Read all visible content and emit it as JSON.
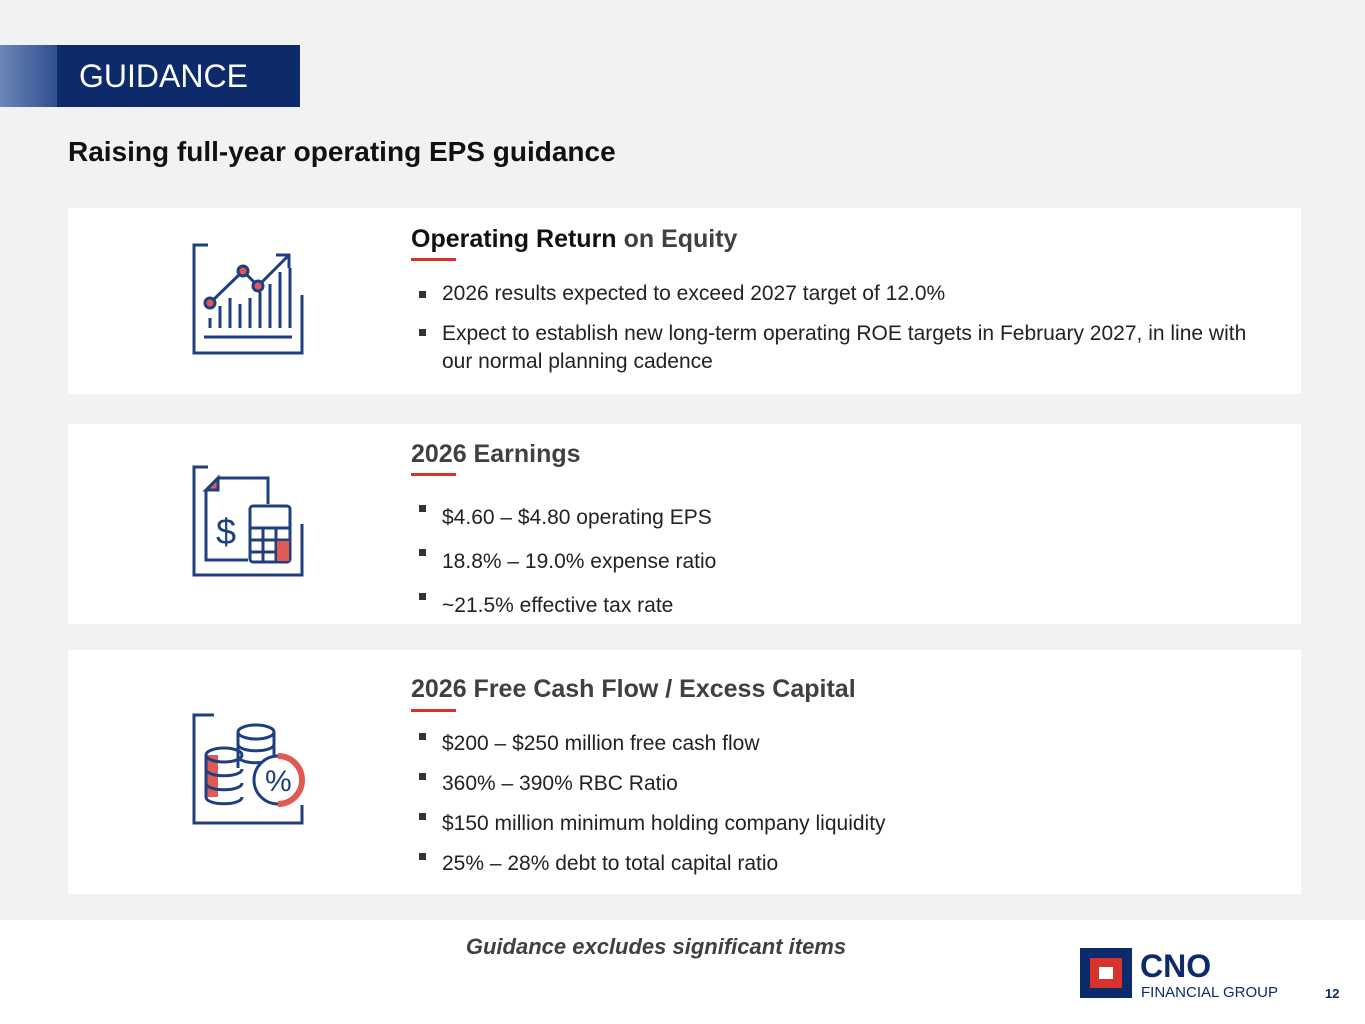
{
  "header": {
    "tag": "GUIDANCE",
    "title": "Raising full-year operating EPS guidance"
  },
  "sections": [
    {
      "heading": [
        "Operating Return",
        "on Equity"
      ],
      "bullets": [
        "2026 results expected to exceed 2027 target of 12.0%",
        "Expect to establish new long-term operating ROE targets in February 2027, in line with our normal planning cadence"
      ]
    },
    {
      "heading": [
        "2026 Earnings"
      ],
      "bullets": [
        "$4.60 – $4.80 operating EPS",
        "18.8% – 19.0% expense ratio",
        "~21.5% effective tax rate"
      ]
    },
    {
      "heading": [
        "2026 Free Cash Flow / Excess Capital"
      ],
      "bullets": [
        "$200 – $250 million free cash flow",
        "360% – 390% RBC Ratio",
        "$150 million minimum holding company liquidity",
        "25% – 28% debt to total capital ratio"
      ]
    }
  ],
  "footer": {
    "note": "Guidance excludes significant items",
    "logo_name": "CNO",
    "logo_sub": "FINANCIAL GROUP",
    "page": "12"
  }
}
